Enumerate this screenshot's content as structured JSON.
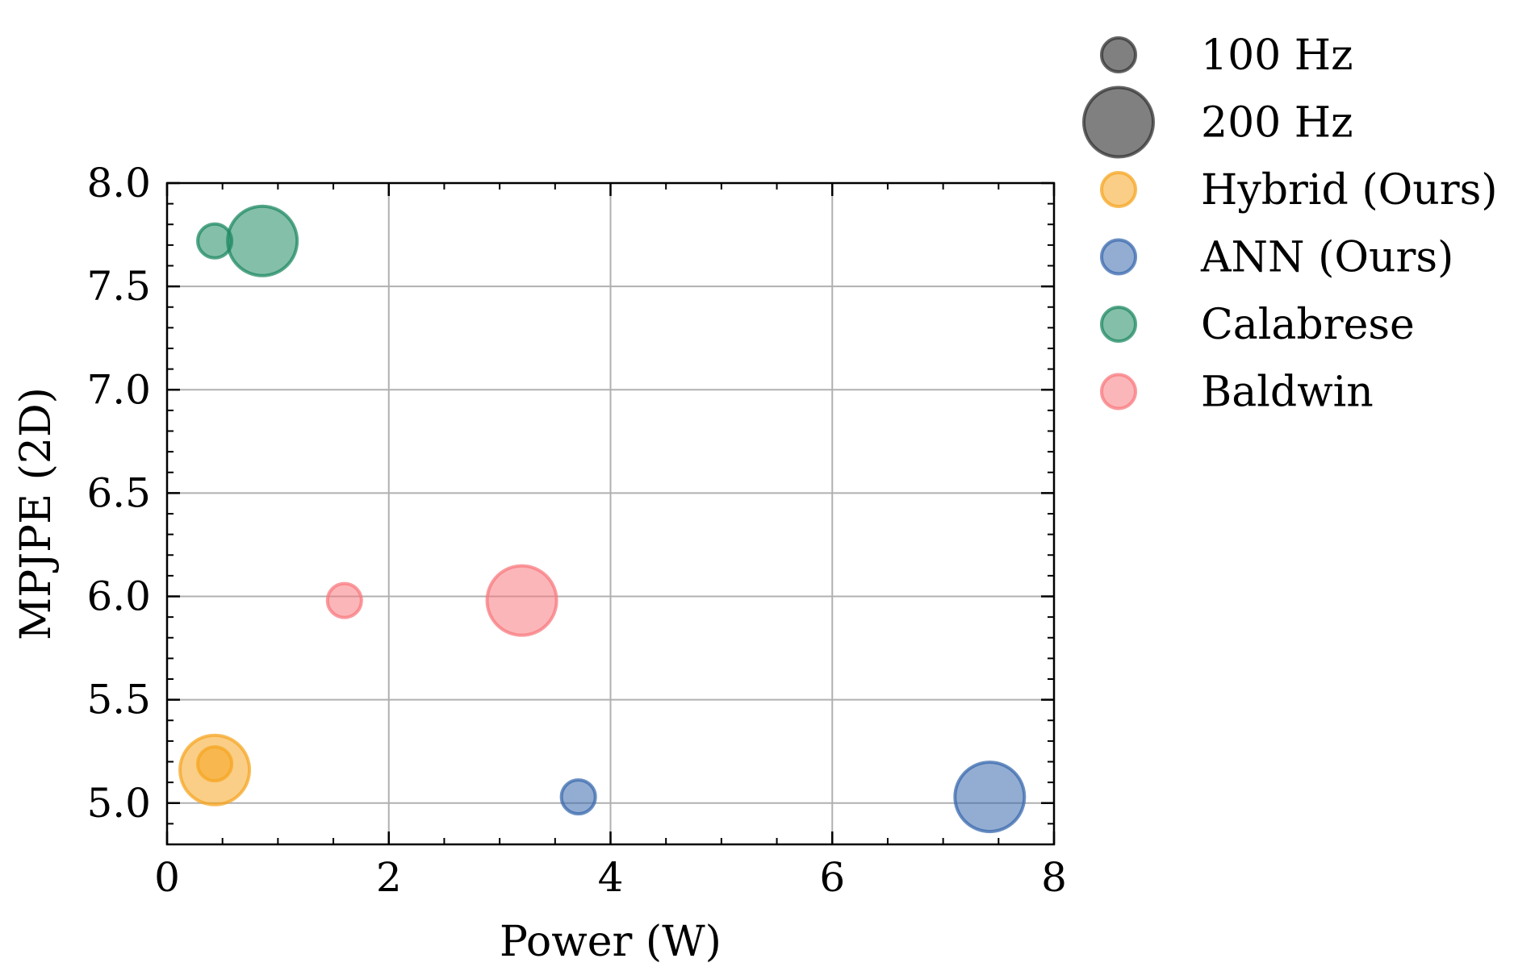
{
  "chart_data": {
    "type": "scatter",
    "title": "",
    "xlabel": "Power (W)",
    "ylabel": "MPJPE (2D)",
    "xlim": [
      0,
      8
    ],
    "ylim": [
      4.8,
      8.0
    ],
    "xticks": [
      0,
      2,
      4,
      6,
      8
    ],
    "xtick_labels": [
      "0",
      "2",
      "4",
      "6",
      "8"
    ],
    "yticks": [
      5.0,
      5.5,
      6.0,
      6.5,
      7.0,
      7.5,
      8.0
    ],
    "ytick_labels": [
      "5.0",
      "5.5",
      "6.0",
      "6.5",
      "7.0",
      "7.5",
      "8.0"
    ],
    "grid": true,
    "legend_position": "outside-right",
    "size_legend": [
      {
        "label": "100 Hz",
        "frequency_hz": 100
      },
      {
        "label": "200 Hz",
        "frequency_hz": 200
      }
    ],
    "series": [
      {
        "name": "Hybrid (Ours)",
        "color": "#f5a623",
        "points": [
          {
            "x": 0.43,
            "y": 5.19,
            "frequency_hz": 100
          },
          {
            "x": 0.43,
            "y": 5.16,
            "frequency_hz": 200
          }
        ]
      },
      {
        "name": "ANN (Ours)",
        "color": "#3a6aad",
        "points": [
          {
            "x": 3.71,
            "y": 5.03,
            "frequency_hz": 100
          },
          {
            "x": 7.42,
            "y": 5.03,
            "frequency_hz": 200
          }
        ]
      },
      {
        "name": "Calabrese",
        "color": "#1f8a63",
        "points": [
          {
            "x": 0.43,
            "y": 7.72,
            "frequency_hz": 100
          },
          {
            "x": 0.86,
            "y": 7.72,
            "frequency_hz": 200
          }
        ]
      },
      {
        "name": "Baldwin",
        "color": "#f87a7f",
        "points": [
          {
            "x": 1.6,
            "y": 5.98,
            "frequency_hz": 100
          },
          {
            "x": 3.2,
            "y": 5.98,
            "frequency_hz": 200
          }
        ]
      }
    ],
    "size_legend_color": "#555555"
  }
}
